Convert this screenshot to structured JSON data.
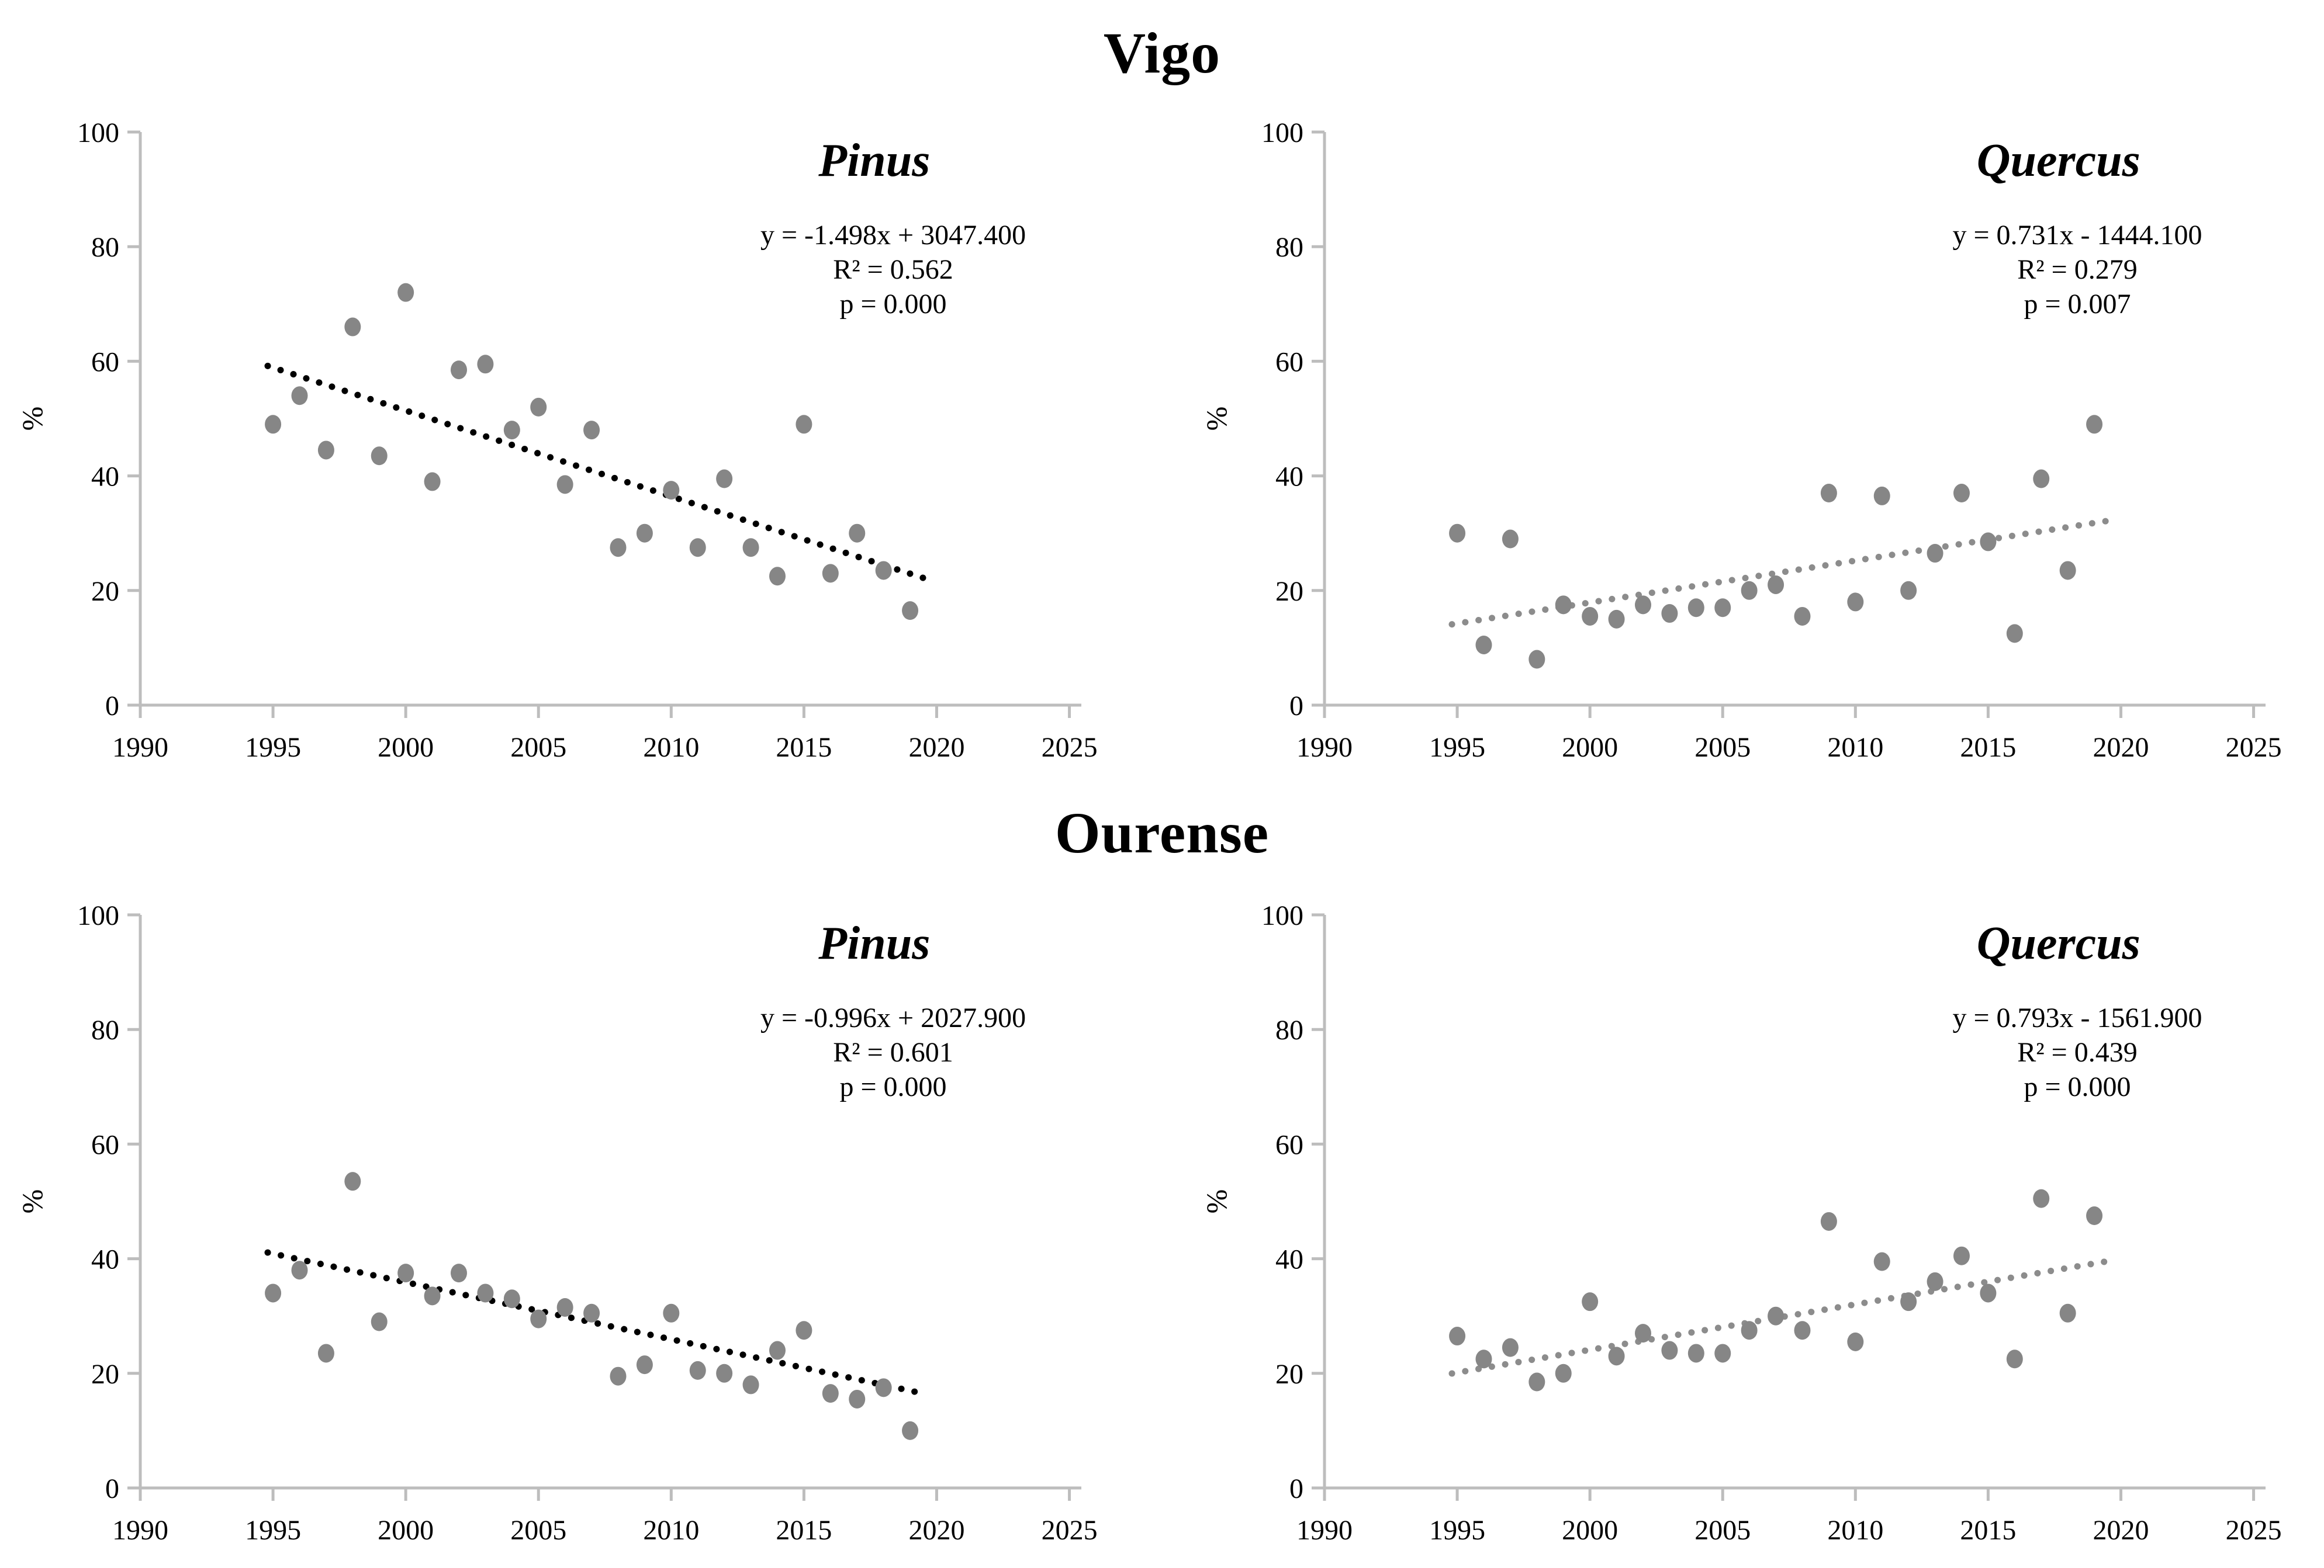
{
  "sections": [
    {
      "title": "Vigo"
    },
    {
      "title": "Ourense"
    }
  ],
  "colors": {
    "background": "#ffffff",
    "axis": "#bdbdbd",
    "text": "#000000",
    "point": "#868686",
    "trend_pinus": "#000000",
    "trend_quercus": "#8c8c8c"
  },
  "chart_data": [
    {
      "type": "scatter",
      "location": "Vigo",
      "title": "Pinus",
      "ylabel": "%",
      "xlim": [
        1990,
        2025.45
      ],
      "ylim": [
        0,
        100
      ],
      "x_ticks": [
        1990,
        1995,
        2000,
        2005,
        2010,
        2015,
        2020,
        2025
      ],
      "y_ticks": [
        0,
        20,
        40,
        60,
        80,
        100
      ],
      "x": [
        1995,
        1996,
        1997,
        1998,
        1999,
        2000,
        2001,
        2002,
        2003,
        2004,
        2005,
        2006,
        2007,
        2008,
        2009,
        2010,
        2011,
        2012,
        2013,
        2014,
        2015,
        2016,
        2017,
        2018,
        2019
      ],
      "y": [
        49,
        54,
        44.5,
        66,
        43.5,
        72,
        39,
        58.5,
        59.5,
        48,
        52,
        38.5,
        48,
        27.5,
        30,
        37.5,
        27.5,
        39.5,
        27.5,
        22.5,
        49,
        23,
        30,
        23.5,
        16.5
      ],
      "annotations": [
        "y = -1.498x + 3047.400",
        "R² = 0.562",
        "p = 0.000"
      ],
      "trend": {
        "slope": -1.498,
        "intercept": 3047.4,
        "x_start": 1994.8,
        "x_end": 2019.6,
        "color": "#000000"
      },
      "point_color": "#868686"
    },
    {
      "type": "scatter",
      "location": "Vigo",
      "title": "Quercus",
      "ylabel": "%",
      "xlim": [
        1990,
        2025.45
      ],
      "ylim": [
        0,
        100
      ],
      "x_ticks": [
        1990,
        1995,
        2000,
        2005,
        2010,
        2015,
        2020,
        2025
      ],
      "y_ticks": [
        0,
        20,
        40,
        60,
        80,
        100
      ],
      "x": [
        1995,
        1996,
        1997,
        1998,
        1999,
        2000,
        2001,
        2002,
        2003,
        2004,
        2005,
        2006,
        2007,
        2008,
        2009,
        2010,
        2011,
        2012,
        2013,
        2014,
        2015,
        2016,
        2017,
        2018,
        2019
      ],
      "y": [
        30,
        10.5,
        29,
        8,
        17.5,
        15.5,
        15,
        17.5,
        16,
        17,
        17,
        20,
        21,
        15.5,
        37,
        18,
        36.5,
        20,
        26.5,
        37,
        28.5,
        12.5,
        39.5,
        23.5,
        49
      ],
      "annotations": [
        "y = 0.731x - 1444.100",
        "R² = 0.279",
        "p = 0.007"
      ],
      "trend": {
        "slope": 0.731,
        "intercept": -1444.1,
        "x_start": 1994.8,
        "x_end": 2019.6,
        "color": "#8c8c8c"
      },
      "point_color": "#868686"
    },
    {
      "type": "scatter",
      "location": "Ourense",
      "title": "Pinus",
      "ylabel": "%",
      "xlim": [
        1990,
        2025.45
      ],
      "ylim": [
        0,
        100
      ],
      "x_ticks": [
        1990,
        1995,
        2000,
        2005,
        2010,
        2015,
        2020,
        2025
      ],
      "y_ticks": [
        0,
        20,
        40,
        60,
        80,
        100
      ],
      "x": [
        1995,
        1996,
        1997,
        1998,
        1999,
        2000,
        2001,
        2002,
        2003,
        2004,
        2005,
        2006,
        2007,
        2008,
        2009,
        2010,
        2011,
        2012,
        2013,
        2014,
        2015,
        2016,
        2017,
        2018,
        2019
      ],
      "y": [
        34,
        38,
        23.5,
        53.5,
        29,
        37.5,
        33.5,
        37.5,
        34,
        33,
        29.5,
        31.5,
        30.5,
        19.5,
        21.5,
        30.5,
        20.5,
        20,
        18,
        24,
        27.5,
        16.5,
        15.5,
        17.5,
        10
      ],
      "annotations": [
        "y = -0.996x + 2027.900",
        "R² = 0.601",
        "p = 0.000"
      ],
      "trend": {
        "slope": -0.996,
        "intercept": 2027.9,
        "x_start": 1994.8,
        "x_end": 2019.6,
        "color": "#000000"
      },
      "point_color": "#868686"
    },
    {
      "type": "scatter",
      "location": "Ourense",
      "title": "Quercus",
      "ylabel": "%",
      "xlim": [
        1990,
        2025.45
      ],
      "ylim": [
        0,
        100
      ],
      "x_ticks": [
        1990,
        1995,
        2000,
        2005,
        2010,
        2015,
        2020,
        2025
      ],
      "y_ticks": [
        0,
        20,
        40,
        60,
        80,
        100
      ],
      "x": [
        1995,
        1996,
        1997,
        1998,
        1999,
        2000,
        2001,
        2002,
        2003,
        2004,
        2005,
        2006,
        2007,
        2008,
        2009,
        2010,
        2011,
        2012,
        2013,
        2014,
        2015,
        2016,
        2017,
        2018,
        2019
      ],
      "y": [
        26.5,
        22.5,
        24.5,
        18.5,
        20,
        32.5,
        23,
        27,
        24,
        23.5,
        23.5,
        27.5,
        30,
        27.5,
        46.5,
        25.5,
        39.5,
        32.5,
        36,
        40.5,
        34,
        22.5,
        50.5,
        30.5,
        47.5
      ],
      "annotations": [
        "y = 0.793x - 1561.900",
        "R² = 0.439",
        "p = 0.000"
      ],
      "trend": {
        "slope": 0.793,
        "intercept": -1561.9,
        "x_start": 1994.8,
        "x_end": 2019.6,
        "color": "#8c8c8c"
      },
      "point_color": "#868686"
    }
  ]
}
